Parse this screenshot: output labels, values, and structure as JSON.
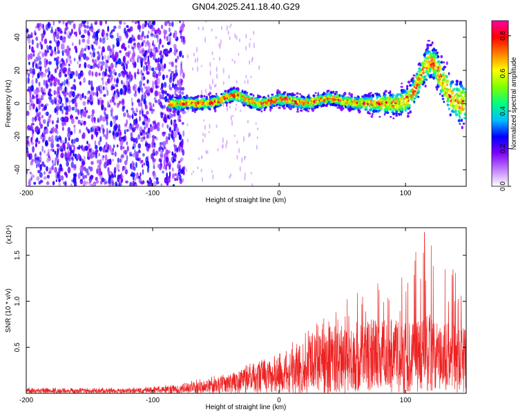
{
  "title": "GN04.2025.241.18.40.G29",
  "chart_data": [
    {
      "type": "heatmap",
      "name": "spectrogram",
      "xlabel": "Height of straight line (km)",
      "ylabel": "Frequency (Hz)",
      "xlim": [
        -200,
        148
      ],
      "ylim": [
        -50,
        50
      ],
      "xticks": [
        -200,
        -100,
        0,
        100
      ],
      "xtick_labels": [
        "-200",
        "-100",
        "0",
        "100"
      ],
      "yticks": [
        -40,
        -20,
        0,
        20,
        40
      ],
      "ytick_labels": [
        "-40",
        "-20",
        "0",
        "20",
        "40"
      ],
      "noise_region_x": [
        -200,
        -75
      ],
      "signal_start_x": -87,
      "signal_center_freq": 0,
      "signal_amplitude_peak": 0.85,
      "signal_bumps": [
        {
          "x": -35,
          "freq": 5
        },
        {
          "x": -10,
          "freq": -1
        },
        {
          "x": 0,
          "freq": 3
        },
        {
          "x": 40,
          "freq": 3
        },
        {
          "x": 120,
          "freq": 25
        }
      ],
      "colorbar": {
        "label": "Normalized spectral amplitude",
        "range": [
          0.0,
          0.88
        ],
        "ticks": [
          0.0,
          0.2,
          0.4,
          0.6,
          0.8
        ],
        "tick_labels": [
          "0.0",
          "0.2",
          "0.4",
          "0.6",
          "0.8"
        ],
        "colors": [
          "#ffffff",
          "#c080ff",
          "#8000ff",
          "#0000ff",
          "#00c0ff",
          "#00ff80",
          "#80ff00",
          "#ffff00",
          "#ff8000",
          "#ff0000",
          "#ff00a0"
        ]
      }
    },
    {
      "type": "line",
      "name": "snr",
      "xlabel": "Height of straight line (km)",
      "ylabel": "SNR (10 * v/v)",
      "y_multiplier": "(x10⁴)",
      "xlim": [
        -200,
        148
      ],
      "ylim": [
        0,
        1.8
      ],
      "xticks": [
        -200,
        -100,
        0,
        100
      ],
      "xtick_labels": [
        "-200",
        "-100",
        "0",
        "100"
      ],
      "yticks": [
        0.5,
        1.0,
        1.5
      ],
      "ytick_labels": [
        "0.5",
        "1.0",
        "1.5"
      ],
      "color": "#ee2222",
      "envelope": [
        {
          "x": -200,
          "mean": 0.03,
          "max": 0.06
        },
        {
          "x": -120,
          "mean": 0.03,
          "max": 0.06
        },
        {
          "x": -80,
          "mean": 0.05,
          "max": 0.1
        },
        {
          "x": -50,
          "mean": 0.1,
          "max": 0.2
        },
        {
          "x": -20,
          "mean": 0.2,
          "max": 0.35
        },
        {
          "x": 0,
          "mean": 0.25,
          "max": 0.45
        },
        {
          "x": 20,
          "mean": 0.35,
          "max": 0.65
        },
        {
          "x": 40,
          "mean": 0.45,
          "max": 0.9
        },
        {
          "x": 70,
          "mean": 0.5,
          "max": 1.2
        },
        {
          "x": 100,
          "mean": 0.5,
          "max": 1.3
        },
        {
          "x": 115,
          "mean": 0.55,
          "max": 1.75
        },
        {
          "x": 130,
          "mean": 0.5,
          "max": 1.5
        },
        {
          "x": 148,
          "mean": 0.45,
          "max": 1.2
        }
      ]
    }
  ]
}
